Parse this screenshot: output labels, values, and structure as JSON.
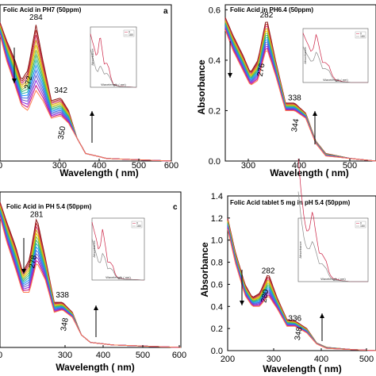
{
  "chart_data": [
    {
      "type": "line",
      "title": "Folic Acid in PH7 (50ppm)",
      "panel_label": "a",
      "xlabel": "Wavelength ( nm)",
      "ylabel": "",
      "xlim": [
        200,
        600
      ],
      "ylim": [
        0,
        0.62
      ],
      "x_ticks": [
        "0",
        "300",
        "400",
        "500",
        "600"
      ],
      "y_ticks": [],
      "peak_annotations": [
        {
          "text": "284",
          "x": 284,
          "y": 0.56
        },
        {
          "text": "272",
          "x": 272,
          "y": 0.31
        },
        {
          "text": "342",
          "x": 342,
          "y": 0.27
        },
        {
          "text": "350",
          "x": 350,
          "y": 0.11
        }
      ],
      "series_envelope": [
        {
          "wl": [
            200,
            215,
            235,
            250,
            265,
            284,
            300,
            320,
            342,
            360,
            380,
            400,
            450,
            600
          ],
          "abs": [
            0.55,
            0.48,
            0.4,
            0.32,
            0.36,
            0.54,
            0.4,
            0.24,
            0.25,
            0.2,
            0.09,
            0.03,
            0.01,
            0.0
          ]
        },
        {
          "wl": [
            200,
            215,
            235,
            250,
            265,
            284,
            300,
            320,
            342,
            360,
            380,
            400,
            450,
            600
          ],
          "abs": [
            0.5,
            0.4,
            0.3,
            0.22,
            0.2,
            0.28,
            0.24,
            0.17,
            0.18,
            0.15,
            0.09,
            0.03,
            0.01,
            0.0
          ]
        }
      ],
      "inset": {
        "ylabel": "Absorbance",
        "xlabel": "Wavelength ( nm)",
        "legend": [
          "0",
          "180"
        ]
      }
    },
    {
      "type": "line",
      "title": "Folic Acid in PH6.4 (50ppm)",
      "panel_label": "",
      "xlabel": "Wavelength ( nm)",
      "ylabel": "Absorbance",
      "xlim": [
        200,
        500
      ],
      "ylim": [
        0,
        0.62
      ],
      "x_ticks": [
        "300",
        "400",
        "500"
      ],
      "y_ticks": [
        "0.0",
        "0.2",
        "0.4",
        "0.6"
      ],
      "peak_annotations": [
        {
          "text": "282",
          "x": 282,
          "y": 0.57
        },
        {
          "text": "276",
          "x": 276,
          "y": 0.36
        },
        {
          "text": "338",
          "x": 338,
          "y": 0.24
        },
        {
          "text": "344",
          "x": 344,
          "y": 0.14
        }
      ],
      "series_envelope": [
        {
          "wl": [
            200,
            215,
            235,
            250,
            265,
            282,
            300,
            320,
            338,
            360,
            380,
            400,
            450,
            500
          ],
          "abs": [
            0.57,
            0.5,
            0.42,
            0.35,
            0.4,
            0.57,
            0.4,
            0.23,
            0.23,
            0.19,
            0.08,
            0.03,
            0.01,
            0.0
          ]
        },
        {
          "wl": [
            200,
            215,
            235,
            250,
            265,
            282,
            300,
            320,
            338,
            360,
            380,
            400,
            450,
            500
          ],
          "abs": [
            0.52,
            0.44,
            0.36,
            0.3,
            0.32,
            0.45,
            0.34,
            0.2,
            0.2,
            0.17,
            0.07,
            0.02,
            0.01,
            0.0
          ]
        }
      ],
      "inset": {
        "ylabel": "Absorbance",
        "xlabel": "Wavelength ( nm)",
        "legend": [
          "0",
          "180"
        ]
      }
    },
    {
      "type": "line",
      "title": "Folic Acid in PH 5.4 (50ppm)",
      "panel_label": "c",
      "xlabel": "Wavelength ( nm)",
      "ylabel": "",
      "xlim": [
        200,
        600
      ],
      "ylim": [
        0,
        0.62
      ],
      "x_ticks": [
        "0",
        "300",
        "400",
        "500",
        "600"
      ],
      "y_ticks": [],
      "peak_annotations": [
        {
          "text": "281",
          "x": 281,
          "y": 0.52
        },
        {
          "text": "278",
          "x": 278,
          "y": 0.34
        },
        {
          "text": "338",
          "x": 338,
          "y": 0.2
        },
        {
          "text": "348",
          "x": 348,
          "y": 0.09
        }
      ],
      "series_envelope": [
        {
          "wl": [
            200,
            215,
            235,
            250,
            265,
            281,
            300,
            320,
            338,
            360,
            380,
            400,
            450,
            600
          ],
          "abs": [
            0.58,
            0.5,
            0.4,
            0.3,
            0.35,
            0.52,
            0.36,
            0.18,
            0.18,
            0.14,
            0.05,
            0.02,
            0.01,
            0.0
          ]
        },
        {
          "wl": [
            200,
            215,
            235,
            250,
            265,
            281,
            300,
            320,
            338,
            360,
            380,
            400,
            450,
            600
          ],
          "abs": [
            0.52,
            0.42,
            0.31,
            0.22,
            0.22,
            0.34,
            0.27,
            0.14,
            0.15,
            0.12,
            0.05,
            0.02,
            0.01,
            0.0
          ]
        }
      ],
      "inset": {
        "ylabel": "Absorbance",
        "xlabel": "Wavelength ( nm)",
        "legend": [
          "0",
          "180"
        ]
      }
    },
    {
      "type": "line",
      "title": "Folic Acid tablet 5 mg in pH 5.4 (50ppm)",
      "panel_label": "",
      "xlabel": "Wavelength ( nm)",
      "ylabel": "Absorbance",
      "xlim": [
        200,
        500
      ],
      "ylim": [
        0,
        1.4
      ],
      "x_ticks": [
        "200",
        "300",
        "400",
        "500"
      ],
      "y_ticks": [
        "0.0",
        "0.2",
        "0.4",
        "0.6",
        "0.8",
        "1.0",
        "1.2",
        "1.4"
      ],
      "peak_annotations": [
        {
          "text": "282",
          "x": 282,
          "y": 0.7
        },
        {
          "text": "280",
          "x": 280,
          "y": 0.49
        },
        {
          "text": "336",
          "x": 336,
          "y": 0.27
        },
        {
          "text": "348",
          "x": 348,
          "y": 0.15
        }
      ],
      "series_envelope": [
        {
          "wl": [
            200,
            215,
            235,
            250,
            265,
            282,
            300,
            320,
            336,
            360,
            380,
            400,
            450,
            500
          ],
          "abs": [
            1.2,
            0.9,
            0.6,
            0.48,
            0.52,
            0.7,
            0.48,
            0.28,
            0.27,
            0.2,
            0.07,
            0.03,
            0.01,
            0.0
          ]
        },
        {
          "wl": [
            200,
            215,
            235,
            250,
            265,
            282,
            300,
            320,
            336,
            360,
            380,
            400,
            450,
            500
          ],
          "abs": [
            1.1,
            0.8,
            0.5,
            0.4,
            0.4,
            0.5,
            0.38,
            0.22,
            0.22,
            0.16,
            0.06,
            0.02,
            0.01,
            0.0
          ]
        }
      ],
      "inset": {
        "ylabel": "Absorbance",
        "xlabel": "Wavelength ( nm)",
        "legend": [
          "0",
          "180"
        ]
      }
    }
  ]
}
